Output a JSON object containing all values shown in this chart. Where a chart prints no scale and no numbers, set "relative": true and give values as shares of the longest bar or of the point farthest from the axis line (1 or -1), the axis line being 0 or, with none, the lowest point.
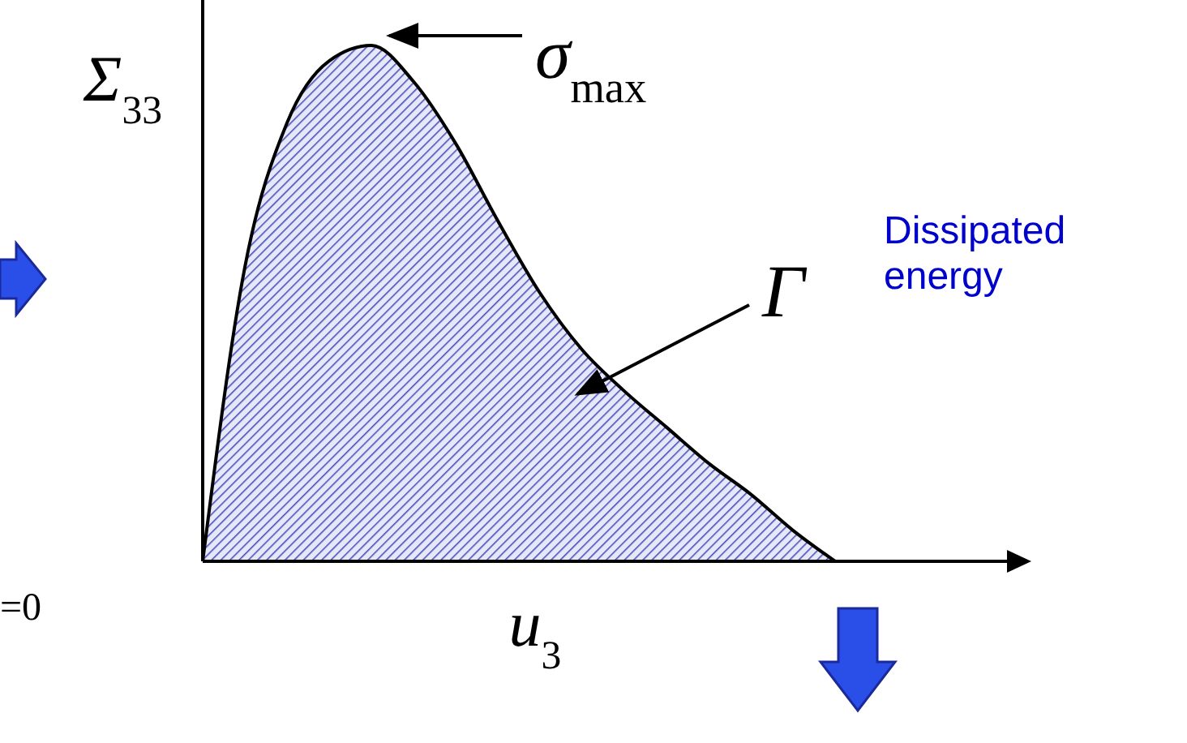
{
  "chart_data": {
    "type": "area",
    "relative": true,
    "xlabel": "u$_{3}$",
    "ylabel": "Σ$_{33}$",
    "categories": [
      null,
      null,
      null,
      null,
      null,
      null,
      null,
      null,
      null,
      null,
      null,
      null,
      null,
      null,
      null,
      null,
      null,
      null,
      null,
      null
    ],
    "series": [
      {
        "color": "#4a4fc0",
        "values": [
          0,
          0.57,
          0.85,
          0.97,
          1,
          0.93,
          0.81,
          0.66,
          0.52,
          0.41,
          0.33,
          0.26,
          0.19,
          0.13,
          0.06,
          0,
          null,
          null,
          null,
          null
        ]
      }
    ],
    "annotations": [
      "σ$_{max}$",
      "Γ",
      "Dissipated energy",
      "=0"
    ]
  }
}
